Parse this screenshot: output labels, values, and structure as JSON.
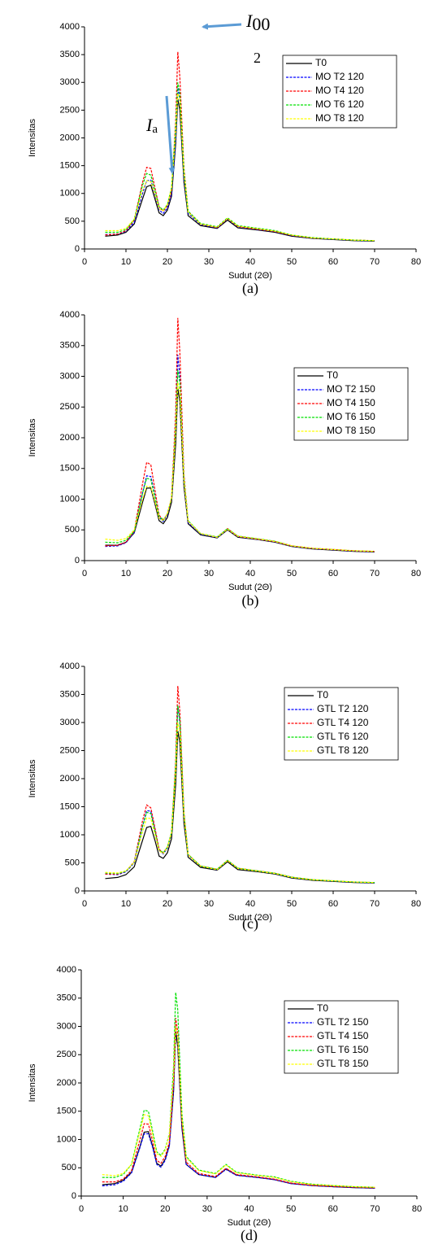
{
  "chart_data": [
    {
      "type": "line",
      "caption": "(a)",
      "x_label": "Sudut (2Θ)",
      "y_label": "Intensitas",
      "x": [
        5,
        8,
        10,
        12,
        14,
        15,
        16,
        17,
        18,
        19,
        20,
        21,
        22,
        22.5,
        23,
        24,
        25,
        28,
        32,
        34.5,
        37,
        42,
        46,
        50,
        55,
        60,
        65,
        70
      ],
      "xlim": [
        0,
        80
      ],
      "xticks": [
        0,
        10,
        20,
        30,
        40,
        50,
        60,
        70,
        80
      ],
      "ylim": [
        0,
        4000
      ],
      "yticks": [
        0,
        500,
        1000,
        1500,
        2000,
        2500,
        3000,
        3500,
        4000
      ],
      "legend": "upper right",
      "annotations": [
        {
          "text": "I",
          "sub": "00",
          "note": "2"
        },
        {
          "text": "I",
          "sub": "a"
        }
      ],
      "series": [
        {
          "name": "T0",
          "color": "#000000",
          "style": "solid",
          "values": [
            230,
            250,
            300,
            450,
            900,
            1120,
            1150,
            900,
            650,
            600,
            700,
            950,
            1900,
            2700,
            2500,
            1200,
            600,
            420,
            370,
            520,
            380,
            340,
            300,
            230,
            190,
            170,
            150,
            140
          ]
        },
        {
          "name": "MO T2 120",
          "color": "#0000ff",
          "style": "dashed",
          "values": [
            260,
            270,
            320,
            480,
            1000,
            1230,
            1240,
            970,
            700,
            640,
            740,
            1000,
            2000,
            2900,
            2700,
            1300,
            640,
            440,
            380,
            540,
            400,
            350,
            310,
            240,
            195,
            175,
            155,
            145
          ]
        },
        {
          "name": "MO T4 120",
          "color": "#ff0000",
          "style": "dashed",
          "values": [
            250,
            270,
            330,
            520,
            1200,
            1470,
            1450,
            1100,
            760,
            680,
            780,
            1050,
            2300,
            3550,
            3100,
            1450,
            680,
            450,
            385,
            550,
            405,
            355,
            315,
            245,
            200,
            180,
            160,
            150
          ]
        },
        {
          "name": "MO T6 120",
          "color": "#00e000",
          "style": "dashed",
          "values": [
            300,
            300,
            350,
            530,
            1150,
            1360,
            1330,
            1050,
            760,
            700,
            800,
            1100,
            2200,
            3000,
            2800,
            1400,
            680,
            460,
            400,
            560,
            420,
            370,
            330,
            250,
            205,
            180,
            160,
            150
          ]
        },
        {
          "name": "MO T8 120",
          "color": "#ffff00",
          "style": "dashed",
          "values": [
            330,
            330,
            370,
            540,
            1050,
            1230,
            1210,
            980,
            720,
            690,
            800,
            1100,
            2100,
            2800,
            2700,
            1350,
            660,
            450,
            390,
            550,
            410,
            360,
            320,
            250,
            200,
            180,
            160,
            150
          ]
        }
      ]
    },
    {
      "type": "line",
      "caption": "(b)",
      "x_label": "Sudut (2Θ)",
      "y_label": "Intensitas",
      "x": [
        5,
        8,
        10,
        12,
        14,
        15,
        16,
        17,
        18,
        19,
        20,
        21,
        22,
        22.5,
        23,
        24,
        25,
        28,
        32,
        34.5,
        37,
        42,
        46,
        50,
        55,
        60,
        65,
        70
      ],
      "xlim": [
        0,
        80
      ],
      "xticks": [
        0,
        10,
        20,
        30,
        40,
        50,
        60,
        70,
        80
      ],
      "ylim": [
        0,
        4000
      ],
      "yticks": [
        0,
        500,
        1000,
        1500,
        2000,
        2500,
        3000,
        3500,
        4000
      ],
      "legend": "upper right",
      "series": [
        {
          "name": "T0",
          "color": "#000000",
          "style": "solid",
          "values": [
            250,
            250,
            300,
            450,
            950,
            1180,
            1180,
            920,
            650,
            600,
            700,
            950,
            1900,
            2800,
            2600,
            1200,
            600,
            420,
            370,
            500,
            380,
            340,
            300,
            230,
            190,
            170,
            150,
            140
          ]
        },
        {
          "name": "MO T2 150",
          "color": "#0000ff",
          "style": "dashed",
          "values": [
            230,
            240,
            290,
            460,
            1100,
            1380,
            1370,
            1050,
            700,
            640,
            740,
            1000,
            2200,
            3350,
            3000,
            1300,
            620,
            430,
            375,
            510,
            390,
            345,
            305,
            235,
            195,
            175,
            155,
            145
          ]
        },
        {
          "name": "MO T4 150",
          "color": "#ff0000",
          "style": "dashed",
          "values": [
            240,
            250,
            300,
            480,
            1250,
            1600,
            1560,
            1150,
            740,
            660,
            760,
            1020,
            2400,
            3950,
            3400,
            1400,
            640,
            440,
            380,
            520,
            395,
            350,
            310,
            240,
            200,
            180,
            160,
            150
          ]
        },
        {
          "name": "MO T6 150",
          "color": "#00e000",
          "style": "dashed",
          "values": [
            300,
            290,
            330,
            480,
            1100,
            1340,
            1320,
            1030,
            720,
            660,
            760,
            1020,
            2200,
            3100,
            2900,
            1350,
            650,
            440,
            385,
            520,
            400,
            355,
            315,
            240,
            200,
            180,
            160,
            150
          ]
        },
        {
          "name": "MO T8 150",
          "color": "#ffff00",
          "style": "dashed",
          "values": [
            350,
            330,
            360,
            500,
            1000,
            1210,
            1200,
            960,
            690,
            650,
            760,
            1020,
            2100,
            2900,
            2750,
            1300,
            640,
            440,
            380,
            510,
            395,
            350,
            310,
            240,
            200,
            180,
            160,
            150
          ]
        }
      ]
    },
    {
      "type": "line",
      "caption": "(c)",
      "x_label": "Sudut (2Θ)",
      "y_label": "Intensitas",
      "x": [
        5,
        8,
        10,
        12,
        14,
        15,
        16,
        17,
        18,
        19,
        20,
        21,
        22,
        22.5,
        23,
        24,
        25,
        28,
        32,
        34.5,
        37,
        42,
        46,
        50,
        55,
        60,
        65,
        70
      ],
      "xlim": [
        0,
        80
      ],
      "xticks": [
        0,
        10,
        20,
        30,
        40,
        50,
        60,
        70,
        80
      ],
      "ylim": [
        0,
        4000
      ],
      "yticks": [
        0,
        500,
        1000,
        1500,
        2000,
        2500,
        3000,
        3500,
        4000
      ],
      "legend": "upper right",
      "series": [
        {
          "name": "T0",
          "color": "#000000",
          "style": "solid",
          "values": [
            220,
            240,
            290,
            430,
            900,
            1130,
            1150,
            900,
            620,
            580,
            680,
            930,
            1900,
            2850,
            2650,
            1200,
            600,
            420,
            370,
            520,
            380,
            340,
            300,
            230,
            190,
            170,
            150,
            140
          ]
        },
        {
          "name": "GTL T2 120",
          "color": "#0000ff",
          "style": "dashed",
          "values": [
            300,
            290,
            340,
            500,
            1150,
            1430,
            1420,
            1080,
            720,
            660,
            760,
            1020,
            2200,
            3300,
            3000,
            1350,
            640,
            440,
            380,
            540,
            400,
            350,
            310,
            240,
            200,
            175,
            155,
            145
          ]
        },
        {
          "name": "GTL T4 120",
          "color": "#ff0000",
          "style": "dashed",
          "values": [
            300,
            300,
            350,
            520,
            1250,
            1530,
            1480,
            1120,
            740,
            680,
            780,
            1040,
            2300,
            3650,
            3200,
            1400,
            650,
            445,
            385,
            545,
            405,
            355,
            315,
            245,
            200,
            180,
            160,
            150
          ]
        },
        {
          "name": "GTL T6 120",
          "color": "#00e000",
          "style": "dashed",
          "values": [
            320,
            310,
            350,
            510,
            1150,
            1400,
            1380,
            1060,
            730,
            680,
            780,
            1040,
            2250,
            3300,
            3050,
            1380,
            650,
            445,
            385,
            545,
            405,
            355,
            315,
            245,
            200,
            180,
            160,
            150
          ]
        },
        {
          "name": "GTL T8 120",
          "color": "#ffff00",
          "style": "dashed",
          "values": [
            330,
            320,
            360,
            510,
            1050,
            1300,
            1290,
            1000,
            710,
            670,
            770,
            1030,
            2100,
            3000,
            2850,
            1330,
            640,
            440,
            380,
            540,
            400,
            350,
            310,
            240,
            200,
            180,
            160,
            150
          ]
        }
      ]
    },
    {
      "type": "line",
      "caption": "(d)",
      "x_label": "Sudut (2Θ)",
      "y_label": "Intensitas",
      "x": [
        5,
        8,
        10,
        12,
        14,
        15,
        16,
        17,
        18,
        19,
        20,
        21,
        22,
        22.5,
        23,
        24,
        25,
        28,
        32,
        34.5,
        37,
        42,
        46,
        50,
        55,
        60,
        65,
        70
      ],
      "xlim": [
        0,
        80
      ],
      "xticks": [
        0,
        10,
        20,
        30,
        40,
        50,
        60,
        70,
        80
      ],
      "ylim": [
        0,
        4000
      ],
      "yticks": [
        0,
        500,
        1000,
        1500,
        2000,
        2500,
        3000,
        3500,
        4000
      ],
      "legend": "upper right",
      "series": [
        {
          "name": "T0",
          "color": "#000000",
          "style": "solid",
          "values": [
            200,
            220,
            280,
            420,
            880,
            1130,
            1140,
            880,
            580,
            530,
            650,
            900,
            1850,
            2900,
            2650,
            1200,
            560,
            380,
            330,
            480,
            370,
            330,
            290,
            220,
            185,
            165,
            150,
            140
          ]
        },
        {
          "name": "GTL T2 150",
          "color": "#0000ff",
          "style": "dashed",
          "values": [
            180,
            200,
            260,
            410,
            860,
            1100,
            1100,
            860,
            560,
            510,
            630,
            880,
            1900,
            3000,
            2750,
            1220,
            560,
            380,
            330,
            470,
            365,
            330,
            290,
            220,
            185,
            165,
            150,
            140
          ]
        },
        {
          "name": "GTL T4 150",
          "color": "#ff0000",
          "style": "dashed",
          "values": [
            250,
            250,
            300,
            450,
            1000,
            1280,
            1270,
            980,
            630,
            580,
            700,
            950,
            2050,
            3150,
            2900,
            1300,
            600,
            400,
            345,
            490,
            380,
            340,
            300,
            230,
            190,
            170,
            155,
            145
          ]
        },
        {
          "name": "GTL T6 150",
          "color": "#00e000",
          "style": "dashed",
          "values": [
            330,
            330,
            380,
            560,
            1200,
            1520,
            1500,
            1150,
            780,
            720,
            830,
            1100,
            2300,
            3600,
            3300,
            1450,
            700,
            460,
            400,
            560,
            420,
            370,
            340,
            260,
            210,
            185,
            165,
            155
          ]
        },
        {
          "name": "GTL T8 150",
          "color": "#ffff00",
          "style": "dashed",
          "values": [
            380,
            360,
            400,
            560,
            1150,
            1440,
            1420,
            1090,
            750,
            700,
            810,
            1080,
            2100,
            3000,
            2800,
            1380,
            680,
            450,
            390,
            550,
            410,
            365,
            330,
            255,
            205,
            185,
            165,
            155
          ]
        }
      ]
    }
  ]
}
